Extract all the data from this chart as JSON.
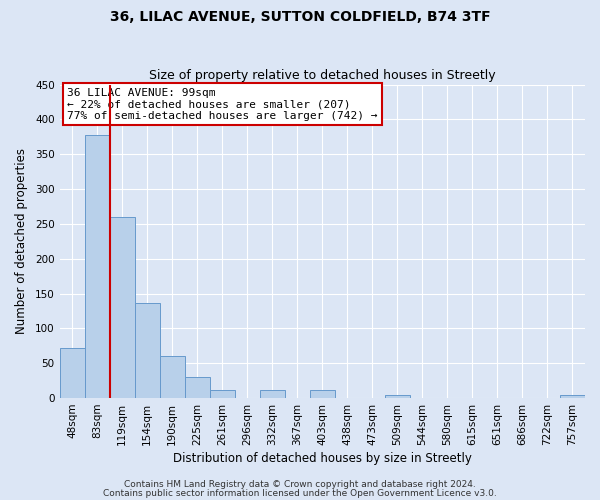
{
  "title": "36, LILAC AVENUE, SUTTON COLDFIELD, B74 3TF",
  "subtitle": "Size of property relative to detached houses in Streetly",
  "xlabel": "Distribution of detached houses by size in Streetly",
  "ylabel": "Number of detached properties",
  "bin_labels": [
    "48sqm",
    "83sqm",
    "119sqm",
    "154sqm",
    "190sqm",
    "225sqm",
    "261sqm",
    "296sqm",
    "332sqm",
    "367sqm",
    "403sqm",
    "438sqm",
    "473sqm",
    "509sqm",
    "544sqm",
    "580sqm",
    "615sqm",
    "651sqm",
    "686sqm",
    "722sqm",
    "757sqm"
  ],
  "bar_heights": [
    72,
    378,
    260,
    137,
    60,
    30,
    11,
    0,
    11,
    0,
    11,
    0,
    0,
    4,
    0,
    0,
    0,
    0,
    0,
    0,
    4
  ],
  "bar_color": "#b8d0ea",
  "bar_edge_color": "#6699cc",
  "vline_color": "#cc0000",
  "vline_x_idx": 1.5,
  "ylim": [
    0,
    450
  ],
  "yticks": [
    0,
    50,
    100,
    150,
    200,
    250,
    300,
    350,
    400,
    450
  ],
  "annotation_title": "36 LILAC AVENUE: 99sqm",
  "annotation_line1": "← 22% of detached houses are smaller (207)",
  "annotation_line2": "77% of semi-detached houses are larger (742) →",
  "annotation_box_color": "#ffffff",
  "annotation_box_edge": "#cc0000",
  "footnote1": "Contains HM Land Registry data © Crown copyright and database right 2024.",
  "footnote2": "Contains public sector information licensed under the Open Government Licence v3.0.",
  "background_color": "#dce6f5",
  "plot_bg_color": "#dce6f5",
  "grid_color": "#ffffff",
  "title_fontsize": 10,
  "subtitle_fontsize": 9,
  "axis_label_fontsize": 8.5,
  "tick_fontsize": 7.5,
  "annotation_fontsize": 8,
  "footnote_fontsize": 6.5
}
